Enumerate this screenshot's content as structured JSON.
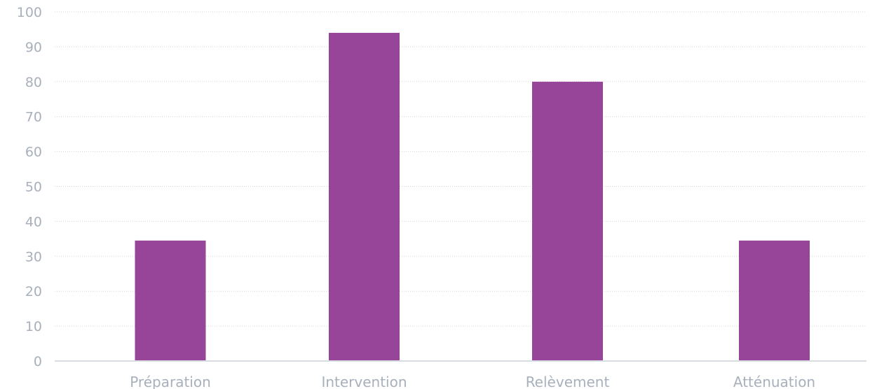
{
  "chart_data": {
    "type": "bar",
    "categories": [
      "Préparation",
      "Intervention",
      "Relèvement",
      "Atténuation"
    ],
    "values": [
      34.5,
      94,
      80,
      34.5
    ],
    "ylim": [
      0,
      100
    ],
    "yticks": [
      0,
      10,
      20,
      30,
      40,
      50,
      60,
      70,
      80,
      90,
      100
    ],
    "grid": true,
    "legend": false,
    "colors": {
      "bar": "#974599",
      "grid": "#d2d6dc",
      "axis": "#d9dce1",
      "tick_text": "#a8b0bc"
    }
  }
}
